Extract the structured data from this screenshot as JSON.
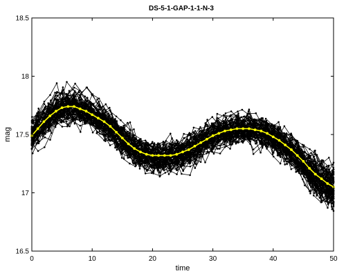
{
  "chart_data": {
    "type": "line",
    "title": "DS-5-1-GAP-1-1-N-3",
    "xlabel": "time",
    "ylabel": "mag",
    "xlim": [
      0,
      50
    ],
    "ylim": [
      16.5,
      18.5
    ],
    "xticks": [
      0,
      10,
      20,
      30,
      40,
      50
    ],
    "yticks": [
      16.5,
      17,
      17.5,
      18,
      18.5
    ],
    "xtick_labels": [
      "0",
      "10",
      "20",
      "30",
      "40",
      "50"
    ],
    "ytick_labels": [
      "16.5",
      "17",
      "17.5",
      "18",
      "18.5"
    ],
    "grid": false,
    "colors": {
      "samples": "#000000",
      "mean": "#ffff00"
    },
    "samples": {
      "count": 80,
      "description": "many noisy black sample curves scattered around the mean curve"
    },
    "mean_series": {
      "x": [
        0,
        1,
        2,
        3,
        4,
        5,
        6,
        7,
        8,
        9,
        10,
        11,
        12,
        13,
        14,
        15,
        16,
        17,
        18,
        19,
        20,
        21,
        22,
        23,
        24,
        25,
        26,
        27,
        28,
        29,
        30,
        31,
        32,
        33,
        34,
        35,
        36,
        37,
        38,
        39,
        40,
        41,
        42,
        43,
        44,
        45,
        46,
        47,
        48,
        49,
        50
      ],
      "y": [
        17.49,
        17.55,
        17.61,
        17.66,
        17.7,
        17.73,
        17.74,
        17.74,
        17.72,
        17.7,
        17.67,
        17.64,
        17.61,
        17.57,
        17.52,
        17.47,
        17.42,
        17.38,
        17.35,
        17.33,
        17.32,
        17.32,
        17.32,
        17.32,
        17.33,
        17.35,
        17.37,
        17.4,
        17.43,
        17.46,
        17.49,
        17.51,
        17.53,
        17.54,
        17.55,
        17.55,
        17.55,
        17.54,
        17.53,
        17.51,
        17.48,
        17.45,
        17.41,
        17.37,
        17.32,
        17.27,
        17.21,
        17.16,
        17.12,
        17.08,
        17.05
      ]
    }
  }
}
